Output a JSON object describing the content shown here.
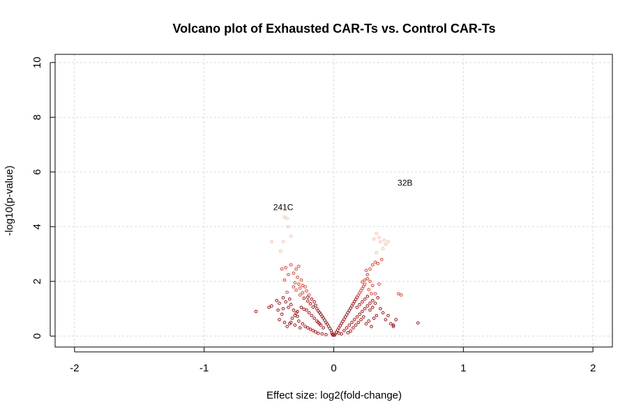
{
  "chart_data": {
    "type": "scatter",
    "title": "Volcano plot of Exhausted CAR-Ts vs. Control CAR-Ts",
    "xlabel": "Effect size: log2(fold-change)",
    "ylabel": "-log10(p-value)",
    "xlim": [
      -2.15,
      2.15
    ],
    "ylim": [
      -0.4,
      10.3
    ],
    "xticks": [
      -2,
      -1,
      0,
      1,
      2
    ],
    "yticks": [
      0,
      2,
      4,
      6,
      8,
      10
    ],
    "grid": true,
    "legend": "none",
    "colors": {
      "high": "#fcbba1",
      "mid": "#ef3b2c",
      "low": "#a50f15",
      "outline": "#000000"
    },
    "annotations": [
      {
        "text": "241C",
        "x": -0.39,
        "y": 4.6
      },
      {
        "text": "32B",
        "x": 0.55,
        "y": 5.5
      }
    ],
    "points": [
      [
        -0.38,
        4.35
      ],
      [
        -0.36,
        4.3
      ],
      [
        -0.35,
        4.0
      ],
      [
        -0.39,
        3.45
      ],
      [
        -0.48,
        3.45
      ],
      [
        -0.33,
        3.65
      ],
      [
        -0.41,
        3.1
      ],
      [
        -0.4,
        2.45
      ],
      [
        -0.37,
        2.5
      ],
      [
        -0.33,
        2.6
      ],
      [
        -0.29,
        2.45
      ],
      [
        -0.27,
        2.55
      ],
      [
        -0.31,
        2.3
      ],
      [
        -0.35,
        2.25
      ],
      [
        -0.38,
        2.05
      ],
      [
        -0.28,
        2.15
      ],
      [
        -0.25,
        2.05
      ],
      [
        -0.3,
        1.95
      ],
      [
        -0.27,
        1.9
      ],
      [
        -0.24,
        1.85
      ],
      [
        -0.31,
        1.8
      ],
      [
        -0.22,
        1.8
      ],
      [
        -0.26,
        1.75
      ],
      [
        -0.29,
        1.68
      ],
      [
        -0.21,
        1.65
      ],
      [
        -0.24,
        1.58
      ],
      [
        -0.19,
        1.5
      ],
      [
        -0.26,
        1.5
      ],
      [
        -0.2,
        1.42
      ],
      [
        -0.23,
        1.38
      ],
      [
        -0.17,
        1.35
      ],
      [
        -0.2,
        1.28
      ],
      [
        -0.15,
        1.25
      ],
      [
        -0.18,
        1.18
      ],
      [
        -0.14,
        1.12
      ],
      [
        -0.16,
        1.06
      ],
      [
        -0.13,
        1.0
      ],
      [
        -0.12,
        0.92
      ],
      [
        -0.11,
        0.86
      ],
      [
        -0.1,
        0.8
      ],
      [
        -0.09,
        0.72
      ],
      [
        -0.08,
        0.66
      ],
      [
        -0.07,
        0.58
      ],
      [
        -0.06,
        0.5
      ],
      [
        -0.05,
        0.44
      ],
      [
        -0.04,
        0.36
      ],
      [
        -0.03,
        0.28
      ],
      [
        -0.02,
        0.2
      ],
      [
        -0.015,
        0.12
      ],
      [
        -0.01,
        0.06
      ],
      [
        -0.005,
        0.03
      ],
      [
        -0.36,
        1.6
      ],
      [
        -0.39,
        1.4
      ],
      [
        -0.37,
        1.25
      ],
      [
        -0.33,
        1.15
      ],
      [
        -0.35,
        1.05
      ],
      [
        -0.31,
        0.95
      ],
      [
        -0.29,
        0.85
      ],
      [
        -0.28,
        0.72
      ],
      [
        -0.32,
        0.65
      ],
      [
        -0.27,
        0.55
      ],
      [
        -0.24,
        0.45
      ],
      [
        -0.22,
        0.35
      ],
      [
        -0.2,
        0.3
      ],
      [
        -0.18,
        0.25
      ],
      [
        -0.16,
        0.2
      ],
      [
        -0.14,
        0.15
      ],
      [
        -0.12,
        0.1
      ],
      [
        -0.09,
        0.08
      ],
      [
        -0.06,
        0.05
      ],
      [
        -0.21,
        0.95
      ],
      [
        -0.19,
        0.85
      ],
      [
        -0.17,
        0.75
      ],
      [
        -0.15,
        0.65
      ],
      [
        -0.13,
        0.55
      ],
      [
        -0.11,
        0.45
      ],
      [
        -0.25,
        1.05
      ],
      [
        -0.23,
        0.98
      ],
      [
        -0.3,
        0.75
      ],
      [
        -0.34,
        0.45
      ],
      [
        -0.26,
        0.3
      ],
      [
        -0.08,
        0.3
      ],
      [
        -0.1,
        0.4
      ],
      [
        -0.12,
        0.5
      ],
      [
        -0.6,
        0.9
      ],
      [
        -0.5,
        1.05
      ],
      [
        -0.48,
        1.1
      ],
      [
        -0.42,
        0.6
      ],
      [
        -0.4,
        0.8
      ],
      [
        -0.43,
        0.95
      ],
      [
        -0.44,
        1.3
      ],
      [
        -0.42,
        1.2
      ],
      [
        -0.39,
        1.0
      ],
      [
        -0.36,
        0.35
      ],
      [
        -0.33,
        0.5
      ],
      [
        -0.3,
        0.4
      ],
      [
        -0.28,
        0.9
      ],
      [
        -0.34,
        1.35
      ],
      [
        -0.38,
        0.5
      ],
      [
        0.005,
        0.03
      ],
      [
        0.01,
        0.07
      ],
      [
        0.02,
        0.14
      ],
      [
        0.03,
        0.22
      ],
      [
        0.04,
        0.3
      ],
      [
        0.05,
        0.38
      ],
      [
        0.06,
        0.46
      ],
      [
        0.07,
        0.54
      ],
      [
        0.08,
        0.62
      ],
      [
        0.09,
        0.7
      ],
      [
        0.1,
        0.78
      ],
      [
        0.11,
        0.86
      ],
      [
        0.12,
        0.94
      ],
      [
        0.13,
        1.02
      ],
      [
        0.14,
        1.1
      ],
      [
        0.15,
        1.18
      ],
      [
        0.16,
        1.26
      ],
      [
        0.17,
        1.34
      ],
      [
        0.18,
        1.42
      ],
      [
        0.19,
        1.5
      ],
      [
        0.2,
        1.58
      ],
      [
        0.21,
        1.66
      ],
      [
        0.22,
        1.74
      ],
      [
        0.23,
        1.82
      ],
      [
        0.24,
        1.9
      ],
      [
        0.22,
        1.98
      ],
      [
        0.24,
        2.05
      ],
      [
        0.26,
        2.1
      ],
      [
        0.25,
        2.4
      ],
      [
        0.28,
        2.45
      ],
      [
        0.3,
        2.6
      ],
      [
        0.32,
        2.7
      ],
      [
        0.34,
        2.65
      ],
      [
        0.37,
        2.8
      ],
      [
        0.33,
        3.05
      ],
      [
        0.38,
        3.2
      ],
      [
        0.4,
        3.35
      ],
      [
        0.42,
        3.45
      ],
      [
        0.39,
        3.5
      ],
      [
        0.35,
        3.6
      ],
      [
        0.33,
        3.75
      ],
      [
        0.36,
        3.45
      ],
      [
        0.31,
        3.55
      ],
      [
        0.26,
        2.25
      ],
      [
        0.28,
        2.0
      ],
      [
        0.3,
        1.85
      ],
      [
        0.27,
        1.7
      ],
      [
        0.29,
        1.55
      ],
      [
        0.08,
        0.2
      ],
      [
        0.1,
        0.3
      ],
      [
        0.12,
        0.4
      ],
      [
        0.14,
        0.5
      ],
      [
        0.16,
        0.6
      ],
      [
        0.18,
        0.7
      ],
      [
        0.2,
        0.8
      ],
      [
        0.22,
        0.9
      ],
      [
        0.24,
        1.0
      ],
      [
        0.26,
        1.1
      ],
      [
        0.28,
        1.2
      ],
      [
        0.3,
        1.3
      ],
      [
        0.15,
        0.3
      ],
      [
        0.17,
        0.4
      ],
      [
        0.19,
        0.5
      ],
      [
        0.21,
        0.6
      ],
      [
        0.23,
        0.7
      ],
      [
        0.25,
        0.45
      ],
      [
        0.27,
        0.55
      ],
      [
        0.29,
        0.35
      ],
      [
        0.31,
        0.65
      ],
      [
        0.33,
        0.75
      ],
      [
        0.11,
        0.12
      ],
      [
        0.13,
        0.18
      ],
      [
        0.06,
        0.08
      ],
      [
        0.04,
        0.1
      ],
      [
        0.18,
        1.05
      ],
      [
        0.2,
        1.15
      ],
      [
        0.22,
        1.25
      ],
      [
        0.24,
        1.35
      ],
      [
        0.26,
        1.45
      ],
      [
        0.28,
        0.95
      ],
      [
        0.3,
        1.05
      ],
      [
        0.32,
        1.55
      ],
      [
        0.34,
        1.4
      ],
      [
        0.36,
        1.0
      ],
      [
        0.38,
        0.85
      ],
      [
        0.4,
        0.6
      ],
      [
        0.42,
        0.75
      ],
      [
        0.44,
        0.45
      ],
      [
        0.46,
        0.35
      ],
      [
        0.48,
        0.6
      ],
      [
        0.5,
        1.55
      ],
      [
        0.52,
        1.5
      ],
      [
        0.65,
        0.48
      ],
      [
        0.46,
        0.4
      ],
      [
        0.35,
        1.9
      ],
      [
        0.32,
        1.2
      ]
    ]
  }
}
